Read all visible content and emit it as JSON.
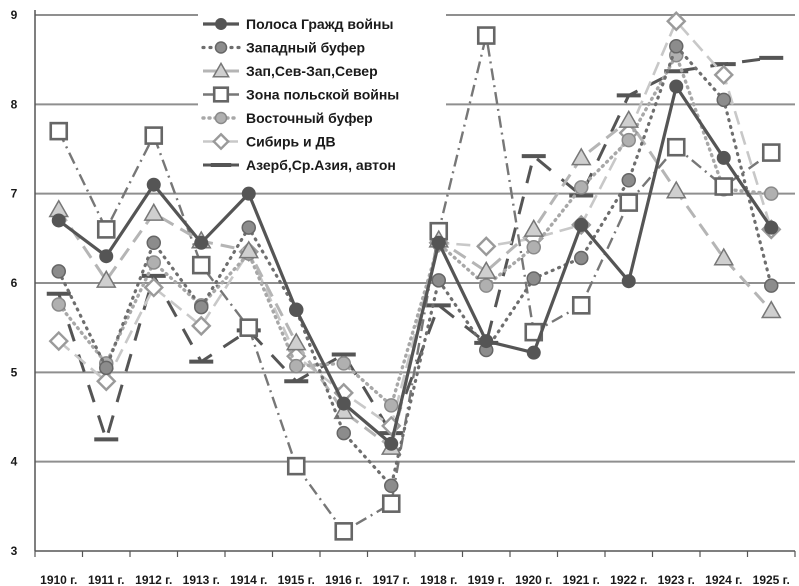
{
  "chart_data": {
    "type": "line",
    "x": [
      "1910 г.",
      "1911 г.",
      "1912 г.",
      "1913 г.",
      "1914 г.",
      "1915 г.",
      "1916 г.",
      "1917 г.",
      "1918 г.",
      "1919 г.",
      "1920 г.",
      "1921 г.",
      "1922 г.",
      "1923 г.",
      "1924 г.",
      "1925 г."
    ],
    "ylim": [
      3,
      9
    ],
    "yticks": [
      "3",
      "4",
      "5",
      "6",
      "7",
      "8",
      "9"
    ],
    "grid": true,
    "legend_position": "top-center",
    "series": [
      {
        "name": "Полоса Гражд войны",
        "color": "#555555",
        "values": [
          6.7,
          6.3,
          7.1,
          6.45,
          7.0,
          5.7,
          4.65,
          4.2,
          6.45,
          5.35,
          5.22,
          6.65,
          6.02,
          8.2,
          7.4,
          6.62
        ]
      },
      {
        "name": "Западный буфер",
        "color": "#6e6e6e",
        "values": [
          6.13,
          5.05,
          6.45,
          5.73,
          6.62,
          5.7,
          4.32,
          3.73,
          6.03,
          5.25,
          6.05,
          6.28,
          7.15,
          8.65,
          8.05,
          5.97
        ]
      },
      {
        "name": "Зап,Сев-Зап,Север",
        "color": "#b5b5b5",
        "values": [
          6.82,
          6.03,
          6.78,
          6.47,
          6.36,
          5.33,
          4.56,
          4.16,
          6.48,
          6.13,
          6.6,
          7.4,
          7.82,
          7.03,
          6.28,
          5.69
        ]
      },
      {
        "name": "Зона польской войны",
        "color": "#777777",
        "values": [
          7.7,
          6.6,
          7.65,
          6.2,
          5.5,
          3.95,
          3.22,
          3.53,
          6.58,
          8.77,
          5.45,
          5.75,
          6.9,
          7.52,
          7.08,
          7.46
        ]
      },
      {
        "name": "Восточный буфер",
        "color": "#a8a8a8",
        "values": [
          5.76,
          5.1,
          6.23,
          5.75,
          6.33,
          5.07,
          5.1,
          4.63,
          6.44,
          5.97,
          6.4,
          7.07,
          7.6,
          8.55,
          7.05,
          7.0
        ]
      },
      {
        "name": "Сибирь и ДВ",
        "color": "#c8c8c8",
        "values": [
          5.35,
          4.9,
          5.95,
          5.52,
          6.35,
          5.18,
          4.77,
          4.4,
          6.45,
          6.41,
          6.5,
          6.65,
          7.68,
          8.93,
          8.33,
          6.6
        ]
      },
      {
        "name": "Азерб,Ср.Азия, автон",
        "color": "#555555",
        "values": [
          5.88,
          4.25,
          6.08,
          5.12,
          5.47,
          4.9,
          5.2,
          4.32,
          5.75,
          5.33,
          7.42,
          6.98,
          8.1,
          8.37,
          8.45,
          8.52
        ]
      }
    ]
  }
}
